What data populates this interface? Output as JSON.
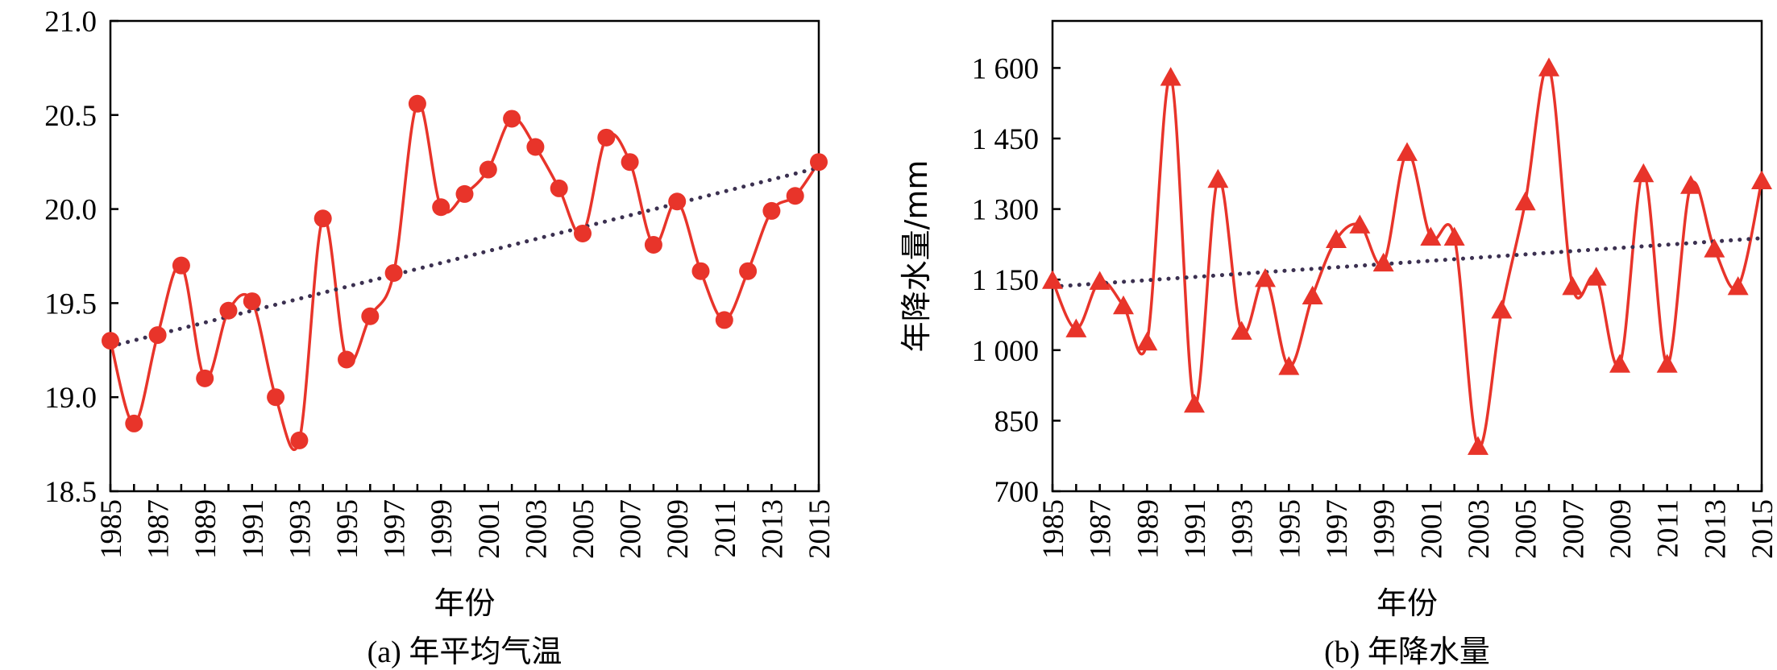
{
  "colors": {
    "series": "#e8342a",
    "trend": "#3b3050",
    "axis": "#000000"
  },
  "chart_data": [
    {
      "type": "line",
      "caption": "(a) 年平均气温",
      "xlabel": "年份",
      "ylabel": "",
      "ylim": [
        18.5,
        21.0
      ],
      "yticks": [
        18.5,
        19.0,
        19.5,
        20.0,
        20.5,
        21.0
      ],
      "ytick_labels": [
        "18.5",
        "19.0",
        "19.5",
        "20.0",
        "20.5",
        "21.0"
      ],
      "xlim": [
        1985,
        2015
      ],
      "xticks": [
        "1985",
        "1987",
        "1989",
        "1991",
        "1993",
        "1995",
        "1997",
        "1999",
        "2001",
        "2003",
        "2005",
        "2007",
        "2009",
        "2011",
        "2013",
        "2015"
      ],
      "marker": "circle",
      "smooth": true,
      "grid": false,
      "x": [
        1985,
        1986,
        1987,
        1988,
        1989,
        1990,
        1991,
        1992,
        1993,
        1994,
        1995,
        1996,
        1997,
        1998,
        1999,
        2000,
        2001,
        2002,
        2003,
        2004,
        2005,
        2006,
        2007,
        2008,
        2009,
        2010,
        2011,
        2012,
        2013,
        2014,
        2015
      ],
      "values": [
        19.3,
        18.86,
        19.33,
        19.7,
        19.1,
        19.46,
        19.51,
        19.0,
        18.77,
        19.95,
        19.2,
        19.43,
        19.66,
        20.56,
        20.01,
        20.08,
        20.21,
        20.48,
        20.33,
        20.11,
        19.87,
        20.38,
        20.25,
        19.81,
        20.04,
        19.67,
        19.41,
        19.67,
        19.99,
        20.07,
        20.25
      ],
      "trend": {
        "style": "dotted",
        "start": [
          1985,
          19.27
        ],
        "end": [
          2015,
          20.22
        ]
      }
    },
    {
      "type": "line",
      "caption": "(b) 年降水量",
      "xlabel": "年份",
      "ylabel": "年降水量/mm",
      "ylim": [
        700,
        1700
      ],
      "yticks": [
        700,
        850,
        1000,
        1150,
        1300,
        1450,
        1600
      ],
      "ytick_labels": [
        "700",
        "850",
        "1 000",
        "1 150",
        "1 300",
        "1 450",
        "1 600"
      ],
      "xlim": [
        1985,
        2015
      ],
      "xticks": [
        "1985",
        "1987",
        "1989",
        "1991",
        "1993",
        "1995",
        "1997",
        "1999",
        "2001",
        "2003",
        "2005",
        "2007",
        "2009",
        "2011",
        "2013",
        "2015"
      ],
      "marker": "triangle",
      "smooth": true,
      "grid": false,
      "x": [
        1985,
        1986,
        1987,
        1988,
        1989,
        1990,
        1991,
        1992,
        1993,
        1994,
        1995,
        1996,
        1997,
        1998,
        1999,
        2000,
        2001,
        2002,
        2003,
        2004,
        2005,
        2006,
        2007,
        2008,
        2009,
        2010,
        2011,
        2012,
        2013,
        2014,
        2015
      ],
      "values": [
        1148,
        1045,
        1146,
        1094,
        1017,
        1580,
        885,
        1363,
        1040,
        1152,
        965,
        1115,
        1235,
        1266,
        1185,
        1420,
        1240,
        1240,
        795,
        1085,
        1315,
        1600,
        1135,
        1155,
        970,
        1375,
        970,
        1350,
        1215,
        1135,
        1360
      ],
      "trend": {
        "style": "dotted",
        "start": [
          1985,
          1135
        ],
        "end": [
          2015,
          1238
        ]
      }
    }
  ]
}
